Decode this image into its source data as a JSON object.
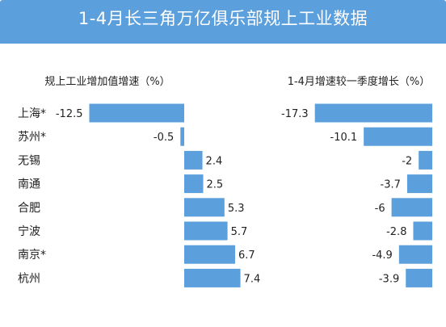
{
  "header": {
    "title": "1-4月长三角万亿俱乐部规上工业数据"
  },
  "chart_data": [
    {
      "type": "bar",
      "orientation": "horizontal",
      "title": "规上工业增加值增速（%）",
      "categories": [
        "上海*",
        "苏州*",
        "无锡",
        "南通",
        "合肥",
        "宁波",
        "南京*",
        "杭州"
      ],
      "values": [
        -12.5,
        -0.5,
        2.4,
        2.5,
        5.3,
        5.7,
        6.7,
        7.4
      ],
      "value_labels": [
        "-12.5",
        "-0.5",
        "2.4",
        "2.5",
        "5.3",
        "5.7",
        "6.7",
        "7.4"
      ],
      "color": "#5b9fdc"
    },
    {
      "type": "bar",
      "orientation": "horizontal",
      "title": "1-4月增速较一季度增长（%）",
      "categories": [
        "上海*",
        "苏州*",
        "无锡",
        "南通",
        "合肥",
        "宁波",
        "南京*",
        "杭州"
      ],
      "values": [
        -17.3,
        -10.1,
        -2,
        -3.7,
        -6,
        -2.8,
        -4.9,
        -3.9
      ],
      "value_labels": [
        "-17.3",
        "-10.1",
        "-2",
        "-3.7",
        "-6",
        "-2.8",
        "-4.9",
        "-3.9"
      ],
      "color": "#5b9fdc"
    }
  ]
}
